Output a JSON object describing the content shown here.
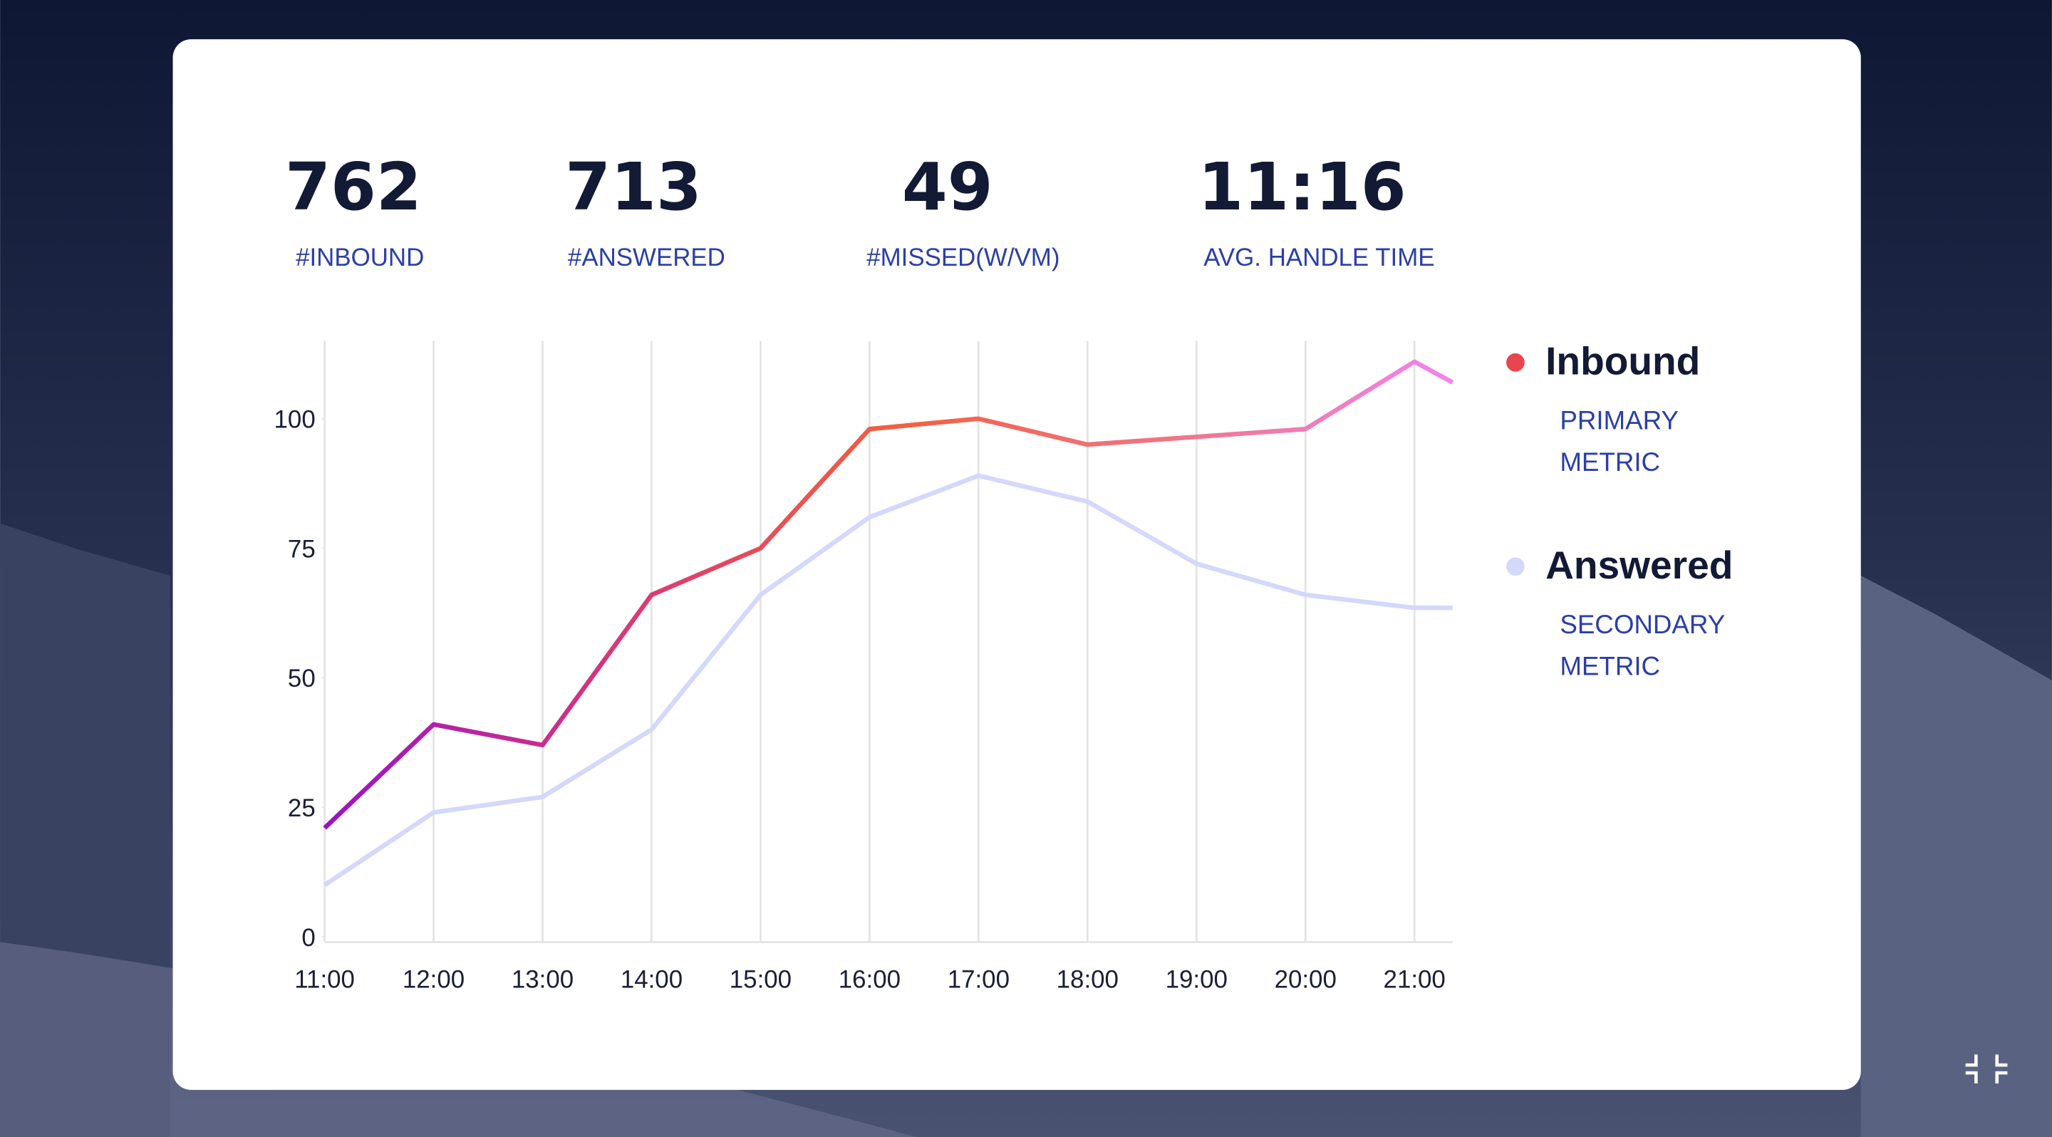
{
  "stats": [
    {
      "value": "762",
      "label": "#INBOUND"
    },
    {
      "value": "713",
      "label": "#ANSWERED"
    },
    {
      "value": "49",
      "label": "#MISSED(W/VM)"
    },
    {
      "value": "11:16",
      "label": "AVG. HANDLE TIME"
    }
  ],
  "chart_data": {
    "type": "line",
    "x": [
      11,
      12,
      13,
      14,
      15,
      16,
      17,
      18,
      19,
      20,
      21,
      21.35
    ],
    "xlim": [
      11,
      21.35
    ],
    "xticks": [
      {
        "value": 11,
        "label": "11:00"
      },
      {
        "value": 12,
        "label": "12:00"
      },
      {
        "value": 13,
        "label": "13:00"
      },
      {
        "value": 14,
        "label": "14:00"
      },
      {
        "value": 15,
        "label": "15:00"
      },
      {
        "value": 16,
        "label": "16:00"
      },
      {
        "value": 17,
        "label": "17:00"
      },
      {
        "value": 18,
        "label": "18:00"
      },
      {
        "value": 19,
        "label": "19:00"
      },
      {
        "value": 20,
        "label": "20:00"
      },
      {
        "value": 21,
        "label": "21:00"
      }
    ],
    "ylim": [
      0,
      115
    ],
    "yticks": [
      0,
      25,
      50,
      75,
      100
    ],
    "grid": true,
    "series": [
      {
        "name": "Inbound",
        "description": [
          "PRIMARY",
          "METRIC"
        ],
        "color": "#e8454f",
        "gradient": [
          "#9b12c9",
          "#d8357a",
          "#f2603f",
          "#f07585",
          "#f085ee"
        ],
        "values": [
          21,
          41,
          37,
          66,
          75,
          98,
          100,
          95,
          96.5,
          98,
          111,
          107
        ]
      },
      {
        "name": "Answered",
        "description": [
          "SECONDARY",
          "METRIC"
        ],
        "color": "#d4d8fa",
        "values": [
          10,
          24,
          27,
          40,
          66,
          81,
          89,
          84,
          72,
          66,
          63.5,
          63.5
        ]
      }
    ]
  }
}
